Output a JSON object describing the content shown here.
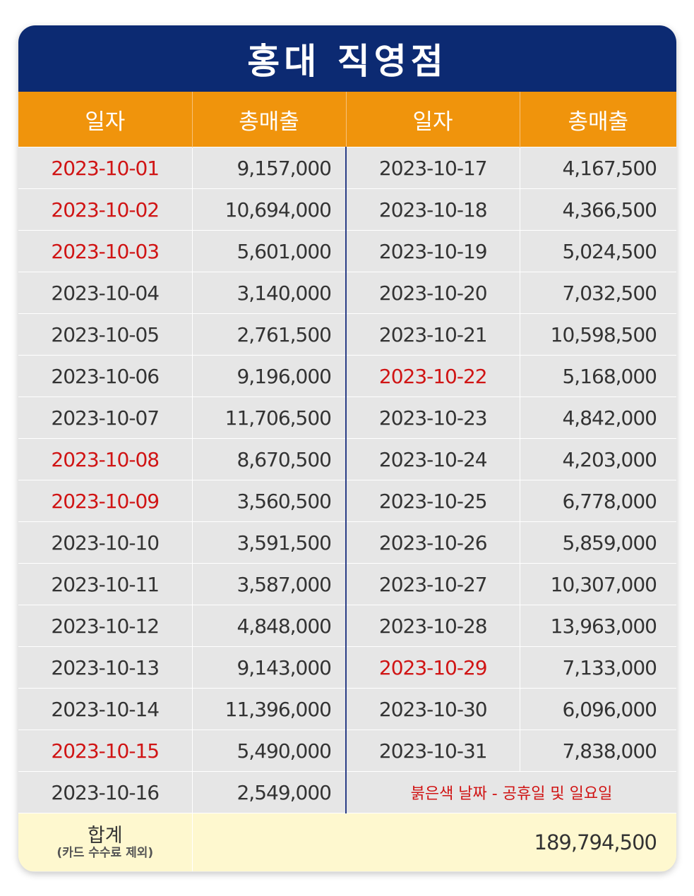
{
  "title": "홍대 직영점",
  "headers": {
    "date": "일자",
    "sales": "총매출"
  },
  "left_rows": [
    {
      "date": "2023-10-01",
      "sales": "9,157,000",
      "red": true
    },
    {
      "date": "2023-10-02",
      "sales": "10,694,000",
      "red": true
    },
    {
      "date": "2023-10-03",
      "sales": "5,601,000",
      "red": true
    },
    {
      "date": "2023-10-04",
      "sales": "3,140,000",
      "red": false
    },
    {
      "date": "2023-10-05",
      "sales": "2,761,500",
      "red": false
    },
    {
      "date": "2023-10-06",
      "sales": "9,196,000",
      "red": false
    },
    {
      "date": "2023-10-07",
      "sales": "11,706,500",
      "red": false
    },
    {
      "date": "2023-10-08",
      "sales": "8,670,500",
      "red": true
    },
    {
      "date": "2023-10-09",
      "sales": "3,560,500",
      "red": true
    },
    {
      "date": "2023-10-10",
      "sales": "3,591,500",
      "red": false
    },
    {
      "date": "2023-10-11",
      "sales": "3,587,000",
      "red": false
    },
    {
      "date": "2023-10-12",
      "sales": "4,848,000",
      "red": false
    },
    {
      "date": "2023-10-13",
      "sales": "9,143,000",
      "red": false
    },
    {
      "date": "2023-10-14",
      "sales": "11,396,000",
      "red": false
    },
    {
      "date": "2023-10-15",
      "sales": "5,490,000",
      "red": true
    },
    {
      "date": "2023-10-16",
      "sales": "2,549,000",
      "red": false
    }
  ],
  "right_rows": [
    {
      "date": "2023-10-17",
      "sales": "4,167,500",
      "red": false
    },
    {
      "date": "2023-10-18",
      "sales": "4,366,500",
      "red": false
    },
    {
      "date": "2023-10-19",
      "sales": "5,024,500",
      "red": false
    },
    {
      "date": "2023-10-20",
      "sales": "7,032,500",
      "red": false
    },
    {
      "date": "2023-10-21",
      "sales": "10,598,500",
      "red": false
    },
    {
      "date": "2023-10-22",
      "sales": "5,168,000",
      "red": true
    },
    {
      "date": "2023-10-23",
      "sales": "4,842,000",
      "red": false
    },
    {
      "date": "2023-10-24",
      "sales": "4,203,000",
      "red": false
    },
    {
      "date": "2023-10-25",
      "sales": "6,778,000",
      "red": false
    },
    {
      "date": "2023-10-26",
      "sales": "5,859,000",
      "red": false
    },
    {
      "date": "2023-10-27",
      "sales": "10,307,000",
      "red": false
    },
    {
      "date": "2023-10-28",
      "sales": "13,963,000",
      "red": false
    },
    {
      "date": "2023-10-29",
      "sales": "7,133,000",
      "red": true
    },
    {
      "date": "2023-10-30",
      "sales": "6,096,000",
      "red": false
    },
    {
      "date": "2023-10-31",
      "sales": "7,838,000",
      "red": false
    }
  ],
  "note": "붉은색 날짜 - 공휴일 및  일요일",
  "total": {
    "label": "합계",
    "sublabel": "(카드 수수료 제외)",
    "value": "189,794,500"
  },
  "colors": {
    "title_bg": "#0c2a72",
    "header_bg": "#f0940c",
    "row_bg": "#e6e6e6",
    "total_bg": "#fef8cf",
    "holiday": "#d01414"
  }
}
